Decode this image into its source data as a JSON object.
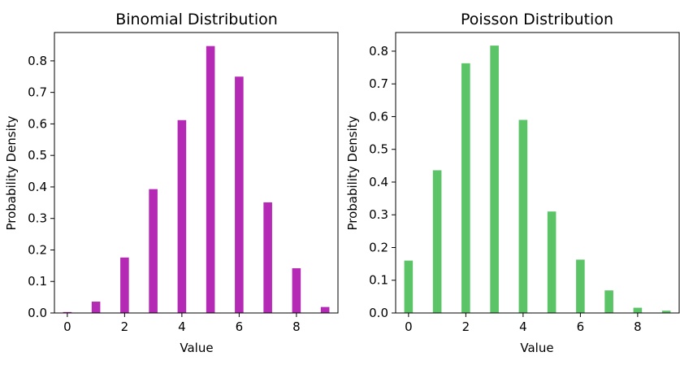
{
  "chart_data": [
    {
      "type": "bar",
      "title": "Binomial Distribution",
      "xlabel": "Value",
      "ylabel": "Probability Density",
      "x": [
        0,
        1,
        2,
        3,
        4,
        5,
        6,
        7,
        8,
        9
      ],
      "values": [
        0.003,
        0.036,
        0.176,
        0.393,
        0.612,
        0.847,
        0.75,
        0.351,
        0.142,
        0.019
      ],
      "xlim": [
        -0.45,
        9.45
      ],
      "ylim": [
        0,
        0.89
      ],
      "xticks": [
        0,
        2,
        4,
        6,
        8
      ],
      "yticks": [
        0.0,
        0.1,
        0.2,
        0.3,
        0.4,
        0.5,
        0.6,
        0.7,
        0.8
      ],
      "color": "#b52ab5",
      "grid": false
    },
    {
      "type": "bar",
      "title": "Poisson Distribution",
      "xlabel": "Value",
      "ylabel": "Probability Density",
      "x": [
        0,
        1,
        2,
        3,
        4,
        5,
        6,
        7,
        8,
        9
      ],
      "values": [
        0.16,
        0.436,
        0.763,
        0.817,
        0.59,
        0.31,
        0.163,
        0.069,
        0.016,
        0.007
      ],
      "xlim": [
        -0.45,
        9.45
      ],
      "ylim": [
        0,
        0.857
      ],
      "xticks": [
        0,
        2,
        4,
        6,
        8
      ],
      "yticks": [
        0.0,
        0.1,
        0.2,
        0.3,
        0.4,
        0.5,
        0.6,
        0.7,
        0.8
      ],
      "color": "#5bc466",
      "grid": false
    }
  ]
}
